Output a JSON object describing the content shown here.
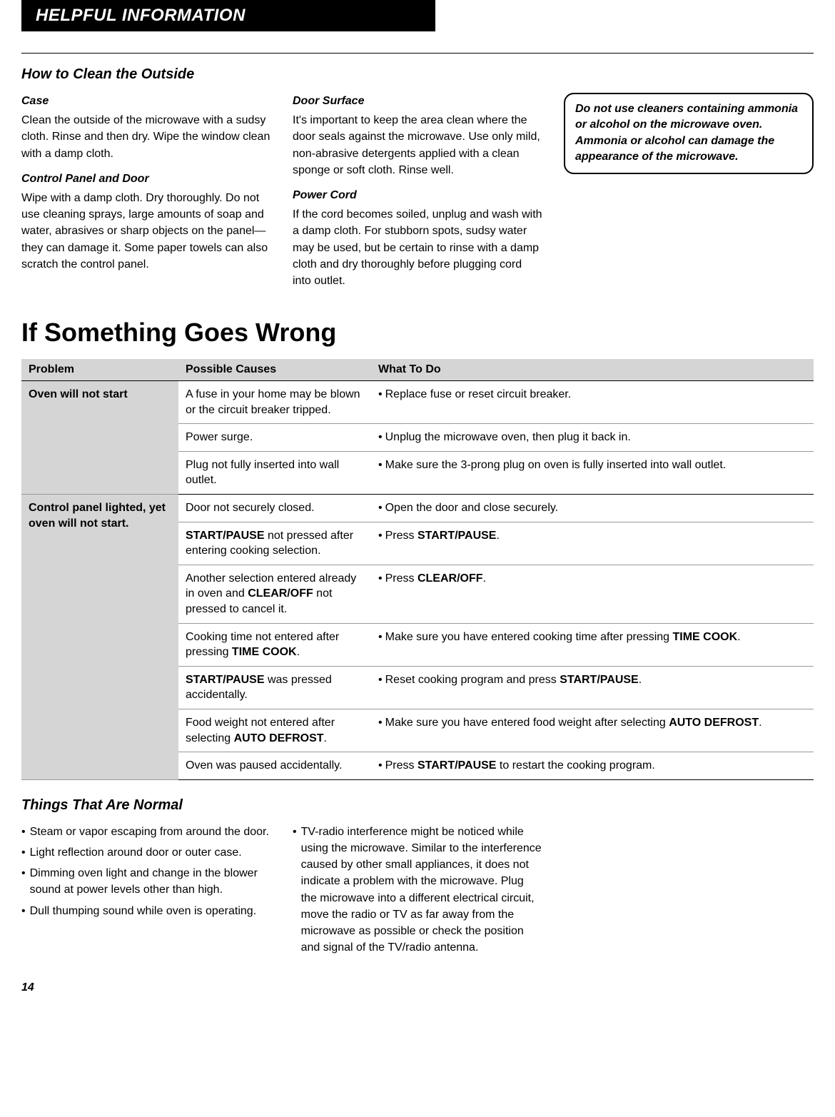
{
  "header": {
    "title": "HELPFUL INFORMATION"
  },
  "clean": {
    "title": "How to Clean the Outside",
    "case_h": "Case",
    "case_p": "Clean the outside of the microwave with a sudsy cloth. Rinse and then dry. Wipe the window clean with a damp cloth.",
    "panel_h": "Control Panel and Door",
    "panel_p": "Wipe with a damp cloth. Dry thoroughly. Do not use cleaning sprays, large amounts of soap and water, abrasives or sharp objects on the panel—they can damage it. Some paper towels can also scratch the control panel.",
    "door_h": "Door Surface",
    "door_p": "It's important to keep the area clean where the door seals against the microwave. Use only mild, non-abrasive detergents applied with a clean sponge or soft cloth. Rinse well.",
    "cord_h": "Power Cord",
    "cord_p": "If the cord becomes soiled, unplug and wash with a damp cloth. For stubborn spots, sudsy water may be used, but be certain to rinse with a damp cloth and dry thoroughly before plugging cord into outlet.",
    "callout": "Do not use cleaners containing ammonia or alcohol on the microwave oven. Ammonia or alcohol can damage the appearance of the microwave."
  },
  "wrong": {
    "title": "If Something Goes Wrong",
    "th1": "Problem",
    "th2": "Possible Causes",
    "th3": "What To Do",
    "p1": "Oven will not start",
    "p1c1": "A fuse in your home may be blown or the circuit breaker tripped.",
    "p1t1": "Replace fuse or reset circuit breaker.",
    "p1c2": "Power surge.",
    "p1t2": "Unplug the microwave oven, then plug it back in.",
    "p1c3": "Plug not fully inserted into wall outlet.",
    "p1t3": "Make sure the 3-prong plug on oven is fully inserted into wall outlet.",
    "p2": "Control panel lighted, yet oven will not start.",
    "p2c1": "Door not securely closed.",
    "p2t1": "Open the door and close securely.",
    "p2c2a": "START/PAUSE",
    "p2c2b": " not pressed after entering cooking selection.",
    "p2t2a": "Press ",
    "p2t2b": "START/PAUSE",
    "p2c3a": "Another selection entered already in oven and ",
    "p2c3b": "CLEAR/OFF",
    "p2c3c": " not pressed to cancel it.",
    "p2t3a": "Press ",
    "p2t3b": "CLEAR/OFF",
    "p2c4a": "Cooking time not entered after pressing ",
    "p2c4b": "TIME COOK",
    "p2t4a": "Make sure you have entered cooking time after pressing ",
    "p2t4b": "TIME COOK",
    "p2c5a": "START/PAUSE",
    "p2c5b": " was pressed accidentally.",
    "p2t5a": "Reset cooking program and press ",
    "p2t5b": "START/PAUSE",
    "p2c6a": "Food weight not entered after selecting ",
    "p2c6b": "AUTO DEFROST",
    "p2t6a": "Make sure you have entered food weight after selecting ",
    "p2t6b": "AUTO DEFROST",
    "p2c7": "Oven was paused accidentally.",
    "p2t7a": "Press ",
    "p2t7b": "START/PAUSE",
    "p2t7c": " to restart the cooking program."
  },
  "normal": {
    "title": "Things That Are Normal",
    "i1": "Steam or vapor escaping from around the door.",
    "i2": "Light reflection around door or outer case.",
    "i3": "Dimming oven light and change in the blower sound at power levels other than high.",
    "i4": "Dull thumping sound while oven is operating.",
    "i5": "TV-radio interference might be noticed while using the microwave. Similar to the interference caused by other small appliances, it does not indicate a problem with the microwave. Plug the microwave into a different electrical circuit, move the radio or TV as far away from the microwave as possible or check the position and signal of the TV/radio antenna."
  },
  "page": "14"
}
